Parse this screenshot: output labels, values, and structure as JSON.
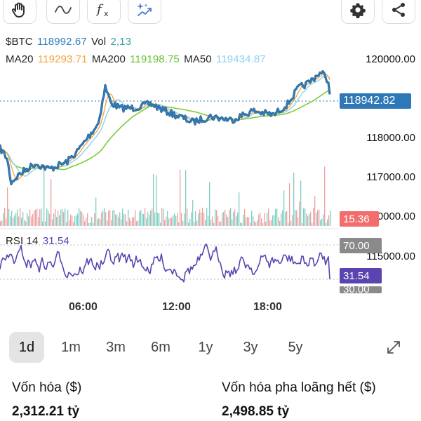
{
  "toolbar": {
    "tools": [
      "hand-icon",
      "wave-icon",
      "function-icon",
      "sparkle-chart-icon"
    ],
    "actions": [
      "gear-icon",
      "share-icon"
    ]
  },
  "legend": {
    "symbol": "$BTC",
    "price": "118992.67",
    "vol_label": "Vol",
    "vol": "2,13",
    "ma20_label": "MA20",
    "ma20": "119293.71",
    "ma200_label": "MA200",
    "ma200": "119198.75",
    "ma50_label": "MA50",
    "ma50": "119434.87",
    "rsi_label": "RSI 14",
    "rsi": "31.54"
  },
  "price_axis": {
    "labels": [
      "120000.00",
      "118000.00",
      "117000.00",
      "115000.00"
    ],
    "partial_label": ".00",
    "current_price_tag": "118942.82",
    "volume_tag": "15.36",
    "rsi_upper_tag": "70.00",
    "rsi_value_tag": "31.54",
    "rsi_lower_tag": "30.00"
  },
  "time_axis": [
    "06:00",
    "12:00",
    "18:00"
  ],
  "timeframes": {
    "items": [
      "1d",
      "1m",
      "3m",
      "6m",
      "1y",
      "3y",
      "5y"
    ],
    "active": "1d"
  },
  "stats": {
    "market_cap_label": "Vốn hóa ($)",
    "market_cap_value": "2,312.21 tỷ",
    "fdv_label": "Vốn hóa pha loãng hết ($)",
    "fdv_value": "2,498.85 tỷ"
  },
  "colors": {
    "price_line": "#2f7fbf",
    "ma20": "#f2a43a",
    "ma200": "#7ccb3a",
    "ma50": "#8fd0ef",
    "price_tag": "#2e78b8",
    "volume_up": "#7fcfc4",
    "volume_down": "#f0a0a0",
    "volume_tag": "#f26d6d",
    "rsi_line": "#5b44b0",
    "rsi_tag": "#5b44b0",
    "rsi_bound_tag": "#8a8a8a"
  }
}
